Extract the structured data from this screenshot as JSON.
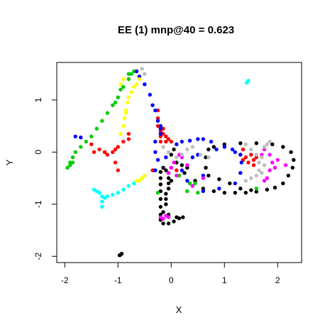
{
  "chart_data": {
    "type": "scatter",
    "title": "EE (1) mnp@40 = 0.623",
    "xlabel": "X",
    "ylabel": "Y",
    "xlim": [
      -2.15,
      2.45
    ],
    "ylim": [
      -2.12,
      1.72
    ],
    "xticks": [
      -2,
      -1,
      0,
      1,
      2
    ],
    "yticks": [
      -2,
      -1,
      0,
      1
    ],
    "grid": false,
    "legend": "none",
    "series": [
      {
        "color": "#000000",
        "points": [
          [
            -0.95,
            -1.97
          ],
          [
            -0.97,
            -1.98
          ],
          [
            -0.93,
            -1.95
          ],
          [
            -0.2,
            -0.62
          ],
          [
            -0.2,
            -0.75
          ],
          [
            -0.2,
            -0.9
          ],
          [
            -0.2,
            -1.05
          ],
          [
            -0.2,
            -1.2
          ],
          [
            -0.2,
            -1.3
          ],
          [
            -0.15,
            -1.37
          ],
          [
            -0.05,
            -1.37
          ],
          [
            0.05,
            -1.33
          ],
          [
            0.15,
            -1.27
          ],
          [
            0.22,
            -1.25
          ],
          [
            0.1,
            -1.25
          ],
          [
            -0.05,
            -1.2
          ],
          [
            -0.1,
            -0.9
          ],
          [
            -0.1,
            -0.8
          ],
          [
            -0.05,
            -0.7
          ],
          [
            -0.05,
            -0.6
          ],
          [
            -0.05,
            -0.5
          ],
          [
            -0.05,
            -0.4
          ],
          [
            -0.1,
            -0.35
          ],
          [
            -0.2,
            -0.5
          ],
          [
            -0.15,
            -0.3
          ],
          [
            0.0,
            -0.05
          ],
          [
            0.05,
            0.05
          ],
          [
            0.1,
            -0.2
          ],
          [
            0.2,
            -0.25
          ],
          [
            0.25,
            -0.4
          ],
          [
            0.45,
            -0.55
          ],
          [
            0.6,
            -0.7
          ],
          [
            0.8,
            -0.75
          ],
          [
            1.0,
            -0.78
          ],
          [
            1.2,
            -0.78
          ],
          [
            1.4,
            -0.78
          ],
          [
            1.6,
            -0.76
          ],
          [
            1.8,
            -0.72
          ],
          [
            1.95,
            -0.68
          ],
          [
            2.1,
            -0.6
          ],
          [
            2.2,
            -0.45
          ],
          [
            2.28,
            -0.3
          ],
          [
            2.3,
            -0.15
          ],
          [
            2.25,
            0.0
          ],
          [
            2.1,
            0.1
          ],
          [
            1.9,
            0.15
          ],
          [
            1.6,
            0.17
          ],
          [
            1.3,
            0.17
          ],
          [
            1.0,
            0.15
          ],
          [
            0.8,
            0.1
          ],
          [
            0.7,
            0.05
          ],
          [
            0.65,
            -0.1
          ],
          [
            0.65,
            -0.3
          ],
          [
            0.7,
            -0.45
          ],
          [
            0.9,
            -0.52
          ],
          [
            1.1,
            -0.6
          ],
          [
            1.3,
            -0.7
          ],
          [
            1.5,
            -0.73
          ],
          [
            0.3,
            -0.3
          ],
          [
            -0.2,
            -0.38
          ],
          [
            0.0,
            -0.55
          ],
          [
            -0.1,
            -1.0
          ],
          [
            -0.15,
            -1.15
          ]
        ]
      },
      {
        "color": "#ff0000",
        "points": [
          [
            -1.2,
            -0.05
          ],
          [
            -1.1,
            0.0
          ],
          [
            -1.0,
            0.1
          ],
          [
            -0.9,
            0.2
          ],
          [
            -0.8,
            0.25
          ],
          [
            -1.35,
            0.05
          ],
          [
            -1.25,
            0.0
          ],
          [
            -1.05,
            -0.2
          ],
          [
            -1.0,
            -0.35
          ],
          [
            -1.05,
            0.05
          ],
          [
            -0.25,
            0.8
          ],
          [
            -0.25,
            0.65
          ],
          [
            -0.25,
            0.5
          ],
          [
            -0.2,
            0.4
          ],
          [
            -0.15,
            0.35
          ],
          [
            -0.1,
            0.3
          ],
          [
            -0.05,
            0.25
          ],
          [
            -0.1,
            0.2
          ],
          [
            -0.2,
            0.2
          ],
          [
            -0.2,
            0.3
          ],
          [
            -0.15,
            0.45
          ],
          [
            0.0,
            0.2
          ],
          [
            1.35,
            0.05
          ],
          [
            1.4,
            -0.1
          ],
          [
            1.45,
            -0.2
          ],
          [
            1.5,
            -0.05
          ],
          [
            1.55,
            -0.15
          ],
          [
            1.35,
            -0.15
          ],
          [
            1.3,
            -0.05
          ],
          [
            1.6,
            -0.1
          ],
          [
            1.55,
            -0.25
          ],
          [
            -1.5,
            0.15
          ],
          [
            -1.45,
            0.0
          ],
          [
            -0.8,
            0.35
          ],
          [
            -0.35,
            -0.35
          ],
          [
            0.1,
            -0.35
          ]
        ]
      },
      {
        "color": "#00cc00",
        "points": [
          [
            -1.95,
            -0.3
          ],
          [
            -1.9,
            -0.2
          ],
          [
            -1.85,
            -0.1
          ],
          [
            -1.8,
            0.0
          ],
          [
            -1.7,
            0.1
          ],
          [
            -1.6,
            0.2
          ],
          [
            -1.5,
            0.3
          ],
          [
            -1.4,
            0.45
          ],
          [
            -1.3,
            0.6
          ],
          [
            -1.2,
            0.75
          ],
          [
            -1.1,
            0.9
          ],
          [
            -1.0,
            1.05
          ],
          [
            -0.9,
            1.25
          ],
          [
            -0.8,
            1.4
          ],
          [
            -0.75,
            1.5
          ],
          [
            -0.7,
            1.55
          ],
          [
            -0.8,
            1.5
          ],
          [
            -1.9,
            -0.25
          ],
          [
            -1.85,
            -0.2
          ],
          [
            0.3,
            -0.75
          ],
          [
            0.5,
            -0.78
          ],
          [
            -0.25,
            -0.78
          ],
          [
            0.15,
            -0.45
          ],
          [
            0.35,
            -0.6
          ],
          [
            1.6,
            -0.7
          ],
          [
            0.45,
            -0.6
          ],
          [
            -0.95,
            1.2
          ],
          [
            -1.05,
            0.95
          ]
        ]
      },
      {
        "color": "#0000ff",
        "points": [
          [
            -1.8,
            0.3
          ],
          [
            -1.7,
            0.28
          ],
          [
            -0.65,
            1.55
          ],
          [
            -0.6,
            1.45
          ],
          [
            -0.5,
            1.3
          ],
          [
            -0.4,
            1.1
          ],
          [
            -0.35,
            0.9
          ],
          [
            -0.3,
            0.8
          ],
          [
            -0.25,
            0.6
          ],
          [
            -0.2,
            0.5
          ],
          [
            -0.2,
            0.35
          ],
          [
            -0.3,
            0.2
          ],
          [
            -0.3,
            0.0
          ],
          [
            -0.25,
            -0.15
          ],
          [
            0.1,
            0.15
          ],
          [
            0.2,
            0.2
          ],
          [
            0.35,
            0.22
          ],
          [
            0.5,
            0.25
          ],
          [
            0.6,
            0.25
          ],
          [
            0.75,
            0.2
          ],
          [
            0.85,
            0.05
          ],
          [
            1.0,
            0.1
          ],
          [
            1.15,
            0.05
          ],
          [
            1.2,
            0.0
          ],
          [
            1.3,
            -0.05
          ],
          [
            1.32,
            -0.2
          ],
          [
            1.3,
            -0.4
          ],
          [
            1.2,
            -0.6
          ],
          [
            0.9,
            -0.7
          ],
          [
            0.6,
            -0.75
          ],
          [
            0.3,
            -0.55
          ],
          [
            0.2,
            -0.35
          ],
          [
            0.0,
            -0.3
          ],
          [
            -0.1,
            -0.1
          ],
          [
            0.4,
            -0.1
          ],
          [
            0.5,
            -0.05
          ],
          [
            0.6,
            -0.45
          ],
          [
            -0.3,
            -0.35
          ],
          [
            -0.2,
            0.45
          ]
        ]
      },
      {
        "color": "#00ffff",
        "points": [
          [
            -1.45,
            -0.72
          ],
          [
            -1.35,
            -0.78
          ],
          [
            -1.3,
            -0.85
          ],
          [
            -1.3,
            -0.95
          ],
          [
            -1.3,
            -1.05
          ],
          [
            -1.25,
            -0.88
          ],
          [
            -1.2,
            -0.85
          ],
          [
            -1.1,
            -0.82
          ],
          [
            -1.0,
            -0.78
          ],
          [
            -0.9,
            -0.72
          ],
          [
            -0.8,
            -0.65
          ],
          [
            -0.7,
            -0.6
          ],
          [
            -1.4,
            -0.75
          ],
          [
            1.42,
            1.33
          ],
          [
            1.45,
            1.37
          ]
        ]
      },
      {
        "color": "#ff00ff",
        "points": [
          [
            -0.2,
            -1.25
          ],
          [
            -0.1,
            -1.22
          ],
          [
            -0.15,
            -1.28
          ],
          [
            -0.05,
            -1.25
          ],
          [
            -0.05,
            -0.4
          ],
          [
            0.0,
            -0.3
          ],
          [
            0.05,
            -0.2
          ],
          [
            0.1,
            -0.45
          ],
          [
            0.15,
            -0.05
          ],
          [
            0.2,
            -0.1
          ],
          [
            0.3,
            -0.25
          ],
          [
            1.7,
            -0.05
          ],
          [
            1.75,
            0.05
          ],
          [
            1.85,
            -0.05
          ],
          [
            1.9,
            -0.2
          ],
          [
            1.85,
            -0.35
          ],
          [
            1.8,
            -0.5
          ],
          [
            1.95,
            -0.3
          ],
          [
            2.0,
            -0.15
          ],
          [
            2.15,
            -0.25
          ],
          [
            1.75,
            -0.55
          ],
          [
            0.6,
            -0.5
          ],
          [
            0.4,
            -0.65
          ]
        ]
      },
      {
        "color": "#ffff00",
        "points": [
          [
            -0.95,
            0.35
          ],
          [
            -0.9,
            0.5
          ],
          [
            -0.88,
            0.65
          ],
          [
            -0.85,
            0.8
          ],
          [
            -0.82,
            0.95
          ],
          [
            -0.8,
            1.05
          ],
          [
            -0.75,
            1.15
          ],
          [
            -0.7,
            1.25
          ],
          [
            -0.65,
            1.3
          ],
          [
            -0.6,
            1.4
          ],
          [
            -0.9,
            1.4
          ],
          [
            -0.95,
            1.3
          ],
          [
            -0.85,
            0.75
          ],
          [
            -0.65,
            -0.55
          ],
          [
            -0.55,
            -0.5
          ],
          [
            -0.5,
            -0.45
          ],
          [
            -0.6,
            -0.55
          ]
        ]
      },
      {
        "color": "#bebebe",
        "points": [
          [
            -0.55,
            1.6
          ],
          [
            -0.5,
            1.5
          ],
          [
            0.2,
            -0.05
          ],
          [
            0.3,
            0.05
          ],
          [
            0.4,
            0.1
          ],
          [
            0.55,
            -0.05
          ],
          [
            0.7,
            -0.1
          ],
          [
            1.4,
            0.15
          ],
          [
            1.5,
            0.05
          ],
          [
            1.6,
            -0.05
          ],
          [
            1.65,
            -0.2
          ],
          [
            1.65,
            -0.35
          ],
          [
            1.6,
            -0.45
          ],
          [
            1.5,
            -0.5
          ],
          [
            1.4,
            -0.55
          ],
          [
            1.7,
            -0.4
          ],
          [
            1.75,
            -0.25
          ],
          [
            1.7,
            -0.1
          ],
          [
            1.75,
            0.1
          ],
          [
            1.8,
            0.15
          ],
          [
            1.85,
            0.2
          ],
          [
            -0.15,
            0.1
          ],
          [
            -0.05,
            0.0
          ],
          [
            0.1,
            -0.1
          ]
        ]
      }
    ]
  }
}
